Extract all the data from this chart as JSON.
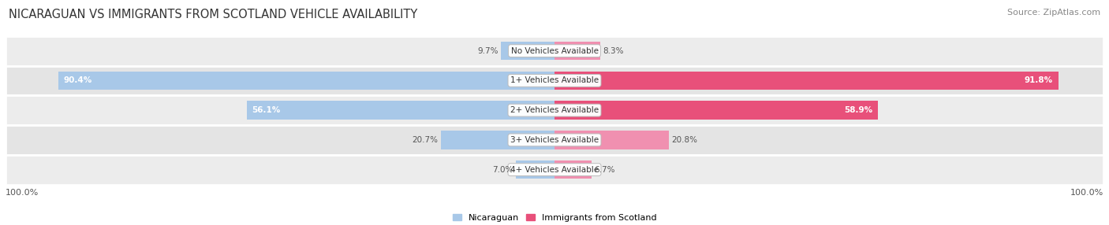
{
  "title": "NICARAGUAN VS IMMIGRANTS FROM SCOTLAND VEHICLE AVAILABILITY",
  "source": "Source: ZipAtlas.com",
  "categories": [
    "No Vehicles Available",
    "1+ Vehicles Available",
    "2+ Vehicles Available",
    "3+ Vehicles Available",
    "4+ Vehicles Available"
  ],
  "nicaraguan_values": [
    9.7,
    90.4,
    56.1,
    20.7,
    7.0
  ],
  "scotland_values": [
    8.3,
    91.8,
    58.9,
    20.8,
    6.7
  ],
  "max_value": 100.0,
  "blue_color": "#a8c8e8",
  "pink_color": "#f090b0",
  "pink_dark": "#e8507a",
  "title_fontsize": 10.5,
  "label_fontsize": 8,
  "source_fontsize": 8,
  "bar_height": 0.62,
  "row_colors": [
    "#ebebeb",
    "#e0e0e0",
    "#ebebeb",
    "#e0e0e0",
    "#ebebeb"
  ],
  "bottom_label": "100.0%"
}
